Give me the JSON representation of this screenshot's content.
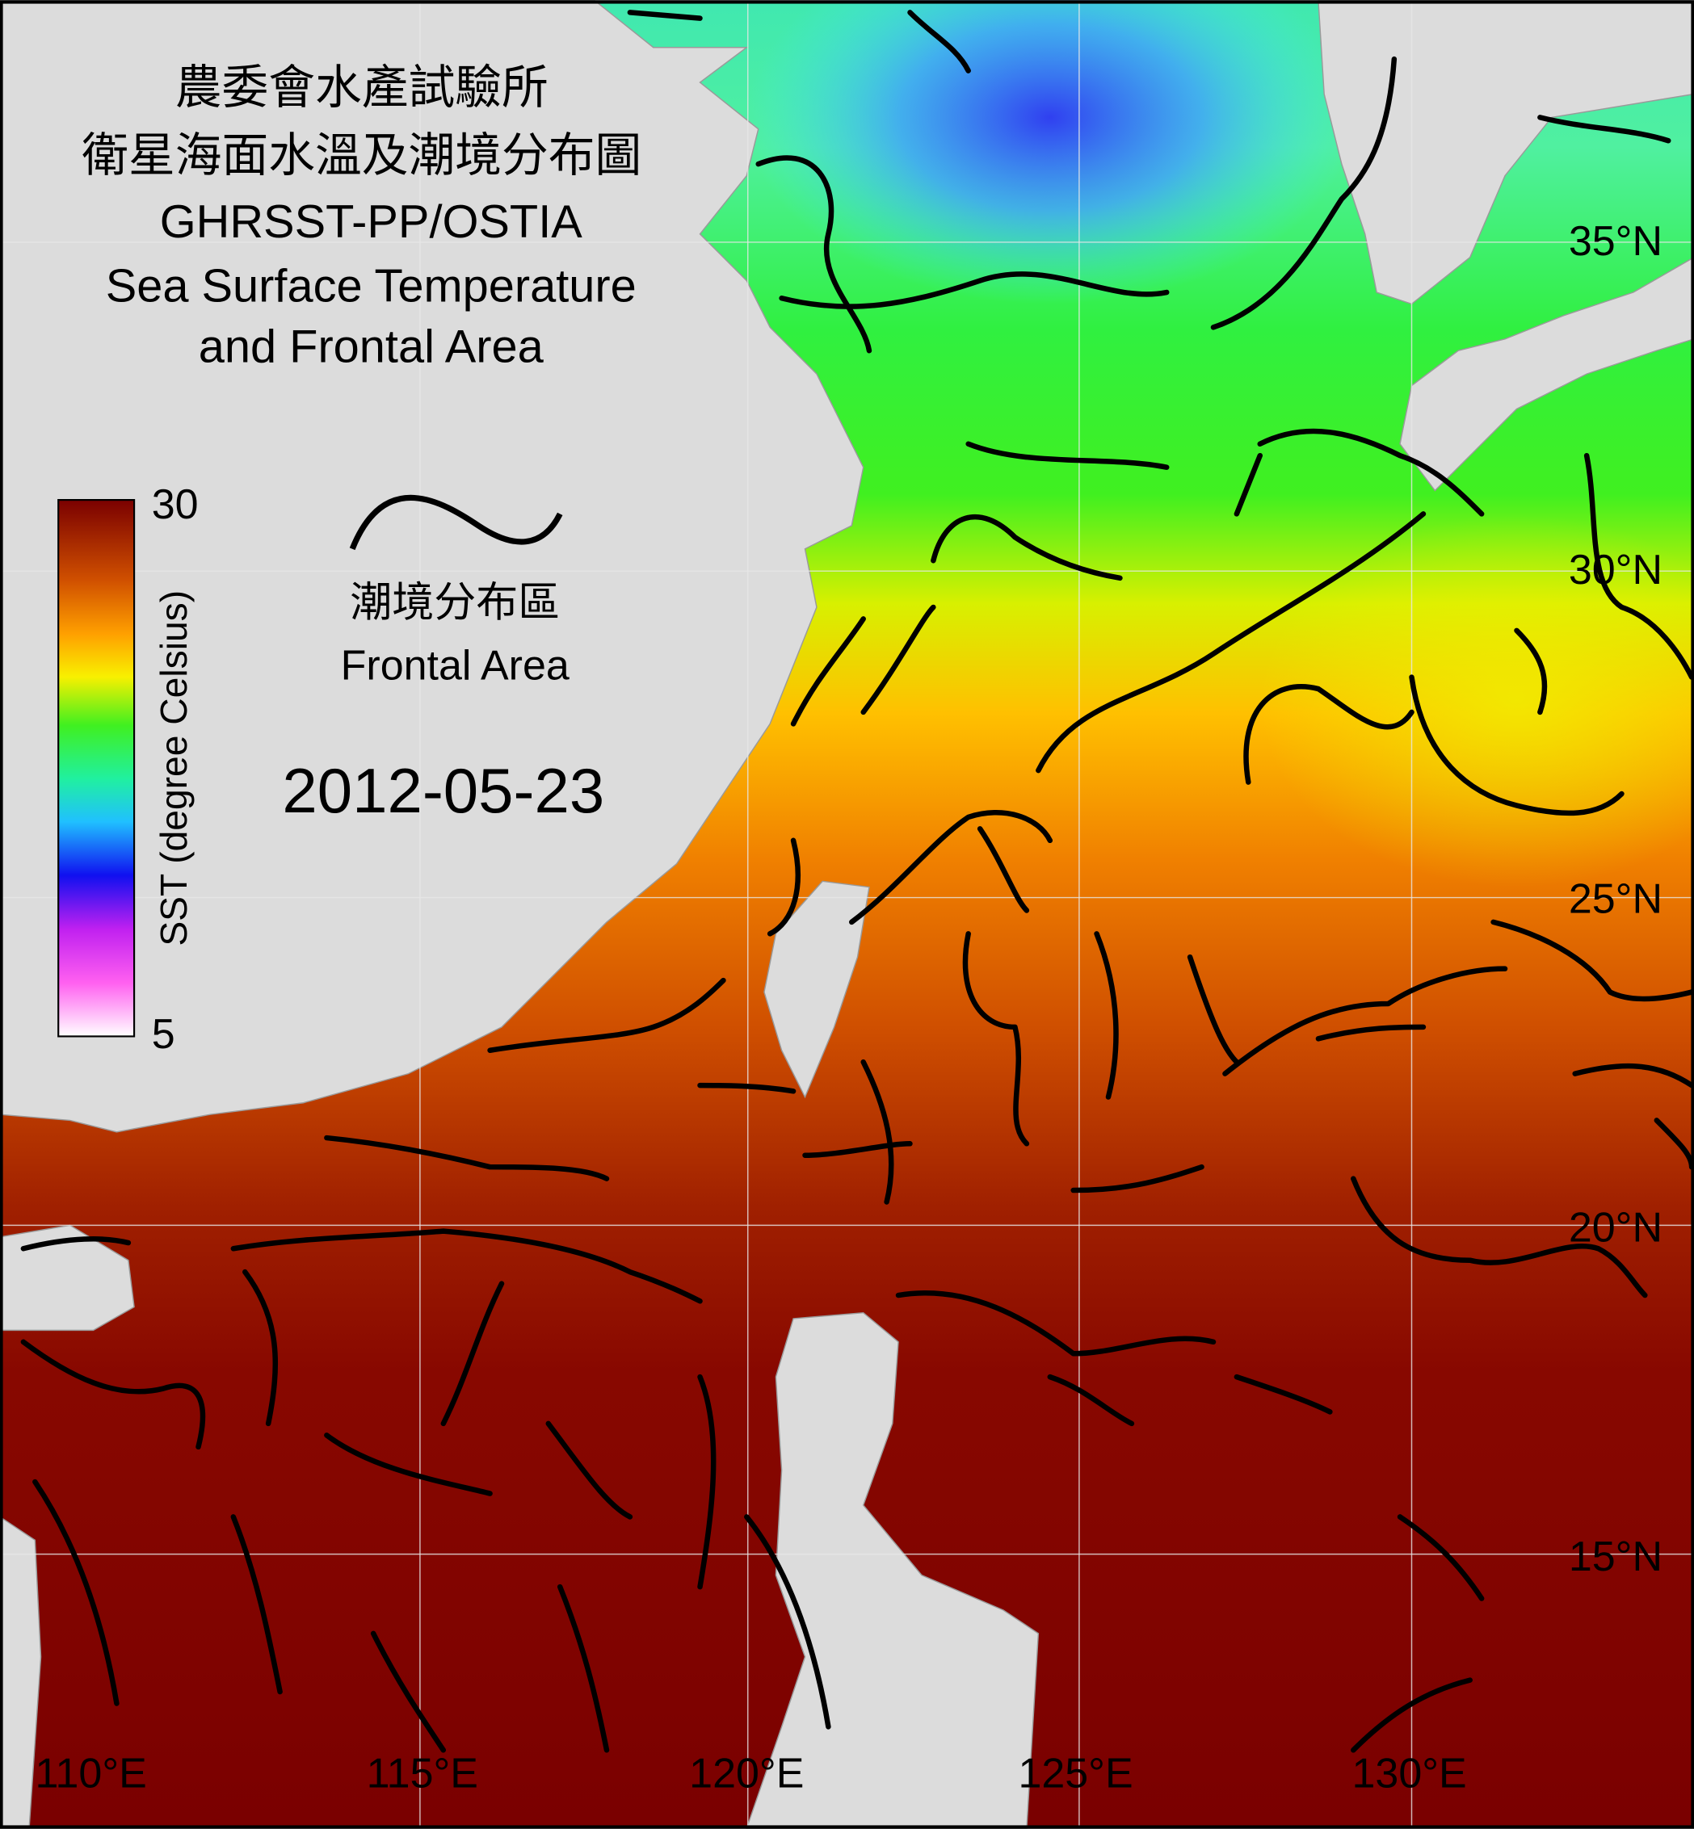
{
  "title": [
    "農委會水產試驗所",
    "衛星海面水溫及潮境分布圖",
    "GHRSST-PP/OSTIA",
    "Sea Surface Temperature",
    "and Frontal Area"
  ],
  "colorbar": {
    "max": 30,
    "min": 5,
    "label": "SST (degree Celsius)"
  },
  "legend": {
    "label_zh": "潮境分布區",
    "label_en": "Frontal Area"
  },
  "date": "2012-05-23",
  "latitude_labels": [
    "35°N",
    "30°N",
    "25°N",
    "20°N",
    "15°N"
  ],
  "longitude_labels": [
    "110°E",
    "115°E",
    "120°E",
    "125°E",
    "130°E"
  ]
}
